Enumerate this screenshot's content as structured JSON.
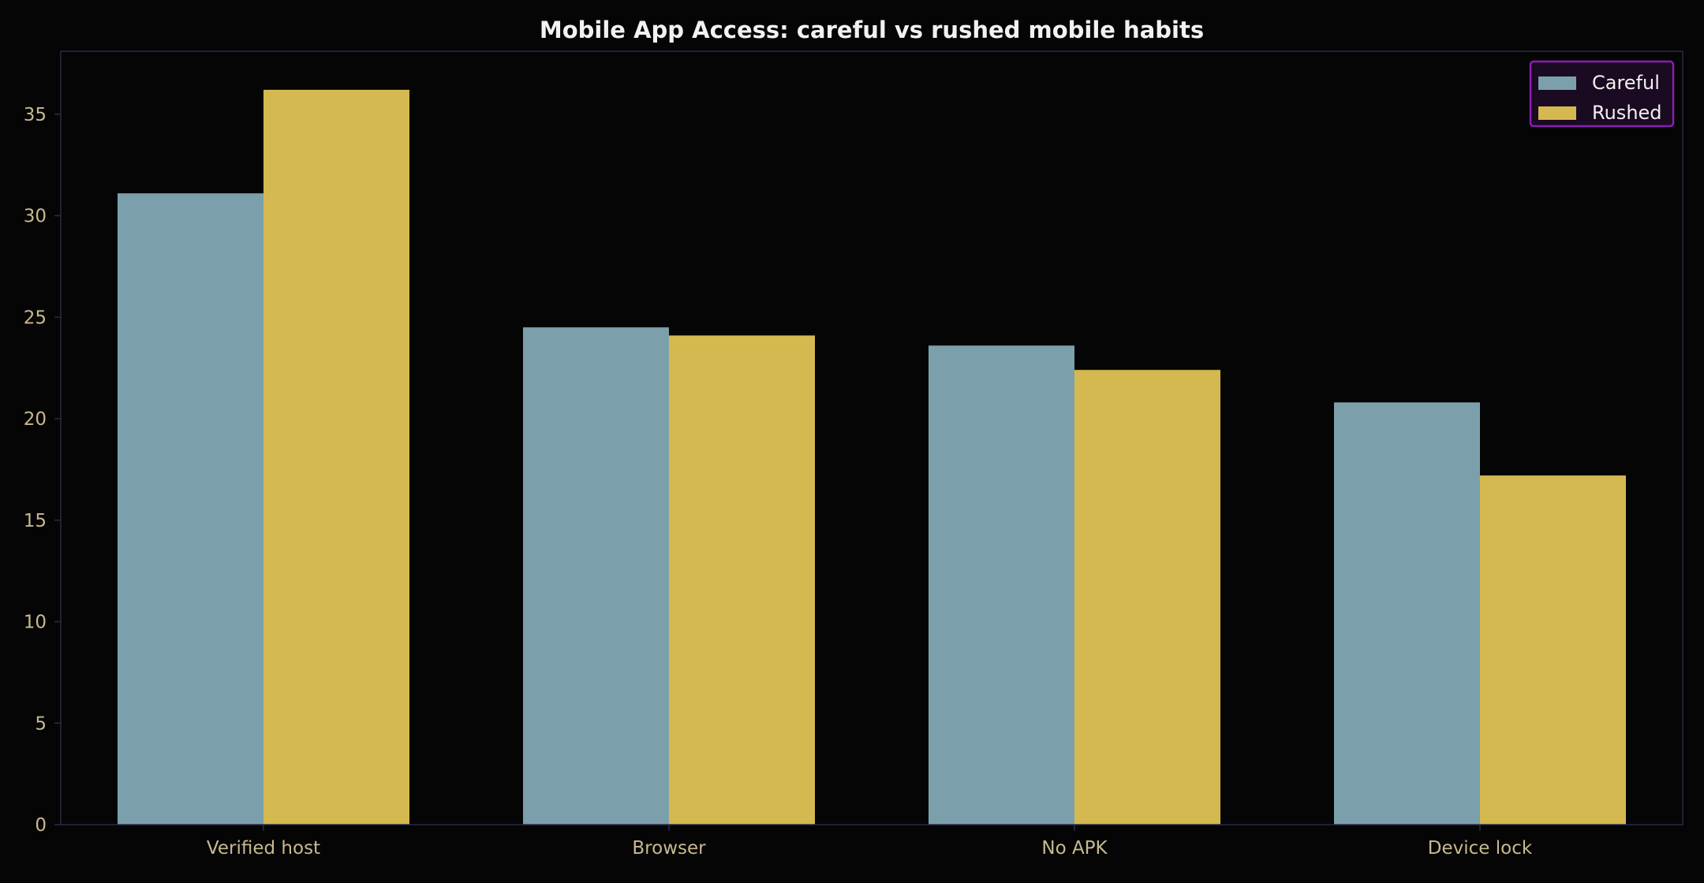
{
  "chart_data": {
    "type": "bar",
    "title": "Mobile App Access: careful vs rushed mobile habits",
    "xlabel": "",
    "ylabel": "",
    "categories": [
      "Verified host",
      "Browser",
      "No APK",
      "Device lock"
    ],
    "series": [
      {
        "name": "Careful",
        "values": [
          31.1,
          24.5,
          23.6,
          20.8
        ],
        "color": "#7ba0ab"
      },
      {
        "name": "Rushed",
        "values": [
          36.2,
          24.1,
          22.4,
          17.2
        ],
        "color": "#d4b850"
      }
    ],
    "ylim": [
      0,
      38.1
    ],
    "yticks": [
      0,
      5,
      10,
      15,
      20,
      25,
      30,
      35
    ],
    "grid": false,
    "legend_position": "top-right"
  },
  "colors": {
    "background": "#050505",
    "plot_border": "#2a2a4a",
    "tick_label": "#c9b98f",
    "title": "#f2f2f2",
    "legend_border": "#8a1fb3",
    "legend_background": "#1a0a22",
    "legend_text": "#f0f0f0"
  }
}
